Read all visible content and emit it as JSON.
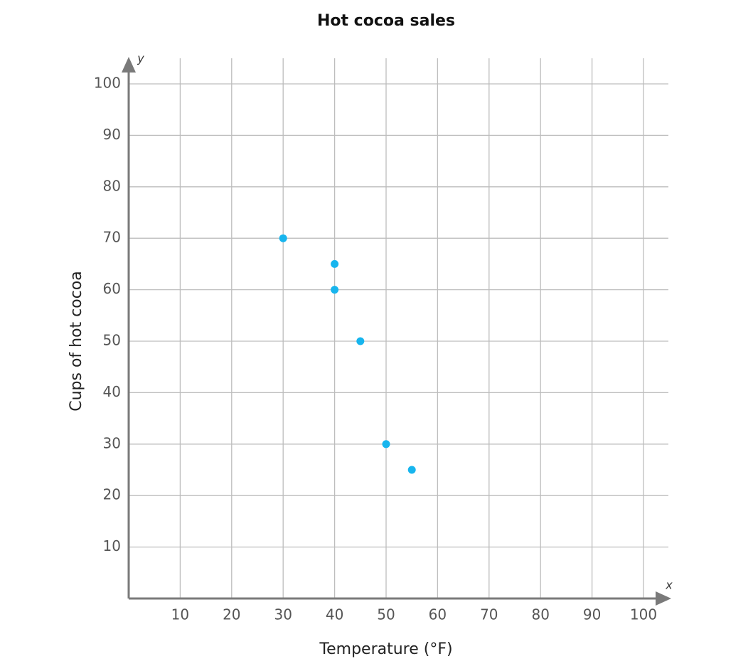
{
  "chart_data": {
    "type": "scatter",
    "title": "Hot cocoa sales",
    "x_label": "Temperature (°F)",
    "y_label": "Cups of hot cocoa",
    "x_symbol": "x",
    "y_symbol": "y",
    "x": [
      30,
      40,
      40,
      45,
      50,
      55
    ],
    "values": [
      70,
      65,
      60,
      50,
      30,
      25
    ],
    "color": "#17b5ee",
    "xlim": [
      0,
      100
    ],
    "ylim": [
      0,
      100
    ],
    "xticks": [
      10,
      20,
      30,
      40,
      50,
      60,
      70,
      80,
      90,
      100
    ],
    "yticks": [
      10,
      20,
      30,
      40,
      50,
      60,
      70,
      80,
      90,
      100
    ],
    "grid": true
  }
}
